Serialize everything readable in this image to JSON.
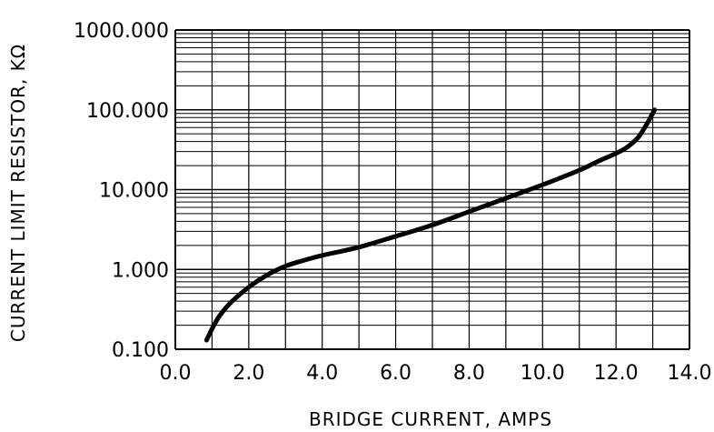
{
  "chart_data": {
    "type": "line",
    "title": "",
    "xlabel": "BRIDGE CURRENT, AMPS",
    "ylabel": "CURRENT LIMIT RESISTOR, KΩ",
    "y_scale": "log",
    "grid": true,
    "xlim": [
      0,
      14
    ],
    "ylim": [
      0.1,
      1000
    ],
    "x_ticks": [
      "0.0",
      "2.0",
      "4.0",
      "6.0",
      "8.0",
      "10.0",
      "12.0",
      "14.0"
    ],
    "y_ticks": [
      "0.100",
      "1.000",
      "10.000",
      "100.000",
      "1000.000"
    ],
    "series": [
      {
        "x": [
          0.85,
          1.0,
          1.2,
          1.5,
          2.0,
          2.5,
          3.0,
          3.5,
          4.0,
          5.0,
          6.0,
          7.0,
          8.0,
          9.0,
          10.0,
          11.0,
          11.5,
          12.0,
          12.3,
          12.6,
          12.8,
          12.95,
          13.05
        ],
        "y": [
          0.13,
          0.18,
          0.26,
          0.38,
          0.6,
          0.85,
          1.1,
          1.3,
          1.5,
          1.9,
          2.6,
          3.6,
          5.3,
          7.8,
          11.5,
          17.5,
          22.5,
          28.5,
          34,
          45,
          62,
          82,
          100
        ]
      }
    ]
  }
}
